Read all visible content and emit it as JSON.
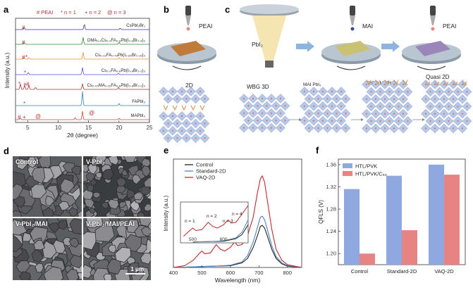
{
  "panels": {
    "a": {
      "label": "a",
      "legend": [
        "# PEAI",
        "* n = 1",
        "+ n = 2",
        "@ n = 3"
      ],
      "traces": [
        {
          "label": "CsPbI₂Br₁",
          "color": "#3a3a8c"
        },
        {
          "label": "DMA₀.₁Cs₀.₃FA₀.₆Pb(I₀.₆Br₀.₄)₃",
          "color": "#2f8a2f"
        },
        {
          "label": "Cs₀.₂₂FA₀.₇₈Pb(I₀.₈₅Br₀.₁₅)₃",
          "color": "#e6912a"
        },
        {
          "label": "Cs₀.₂FA₀.₈Pb(I₀.₈Br₀.₂)₃",
          "color": "#5a4fcf"
        },
        {
          "label": "Cs₀.₀₅MA₀.₁₅FA₀.₈Pb(I₀.₈Br₀.₂)₃",
          "color": "#b03030"
        },
        {
          "label": "FAPbI₃",
          "color": "#2b7fc8"
        },
        {
          "label": "MAPbI₃",
          "color": "#d04040"
        }
      ],
      "xlabel": "2θ (degree)",
      "ylabel": "Intensity (a.u.)",
      "xticks": [
        "5",
        "10",
        "15",
        "20",
        "25"
      ]
    },
    "b": {
      "label": "b",
      "reagent": "PEAI",
      "product": "2D"
    },
    "c": {
      "label": "c",
      "reagents": [
        "PbI₂",
        "MAI",
        "PEAI"
      ],
      "stages": [
        "WBG 3D",
        "MAI PbI₂",
        "PEAI MAPbI₃",
        "Quasi 2D"
      ]
    },
    "d": {
      "label": "d",
      "images": [
        "Control",
        "V-PbI₂",
        "V-PbI₂/MAI",
        "V-PbI₂/MAI/PEAI"
      ],
      "scale": "1 μm"
    },
    "e": {
      "label": "e"
    },
    "f": {
      "label": "f"
    }
  },
  "chart_data": [
    {
      "type": "line",
      "panel": "e",
      "xlabel": "Wavelength (nm)",
      "ylabel": "Intensity (a.u.)",
      "xlim": [
        400,
        850
      ],
      "xticks": [
        400,
        500,
        600,
        700,
        800
      ],
      "series": [
        {
          "name": "Control",
          "color": "#222222",
          "x": [
            400,
            450,
            500,
            550,
            600,
            640,
            660,
            680,
            695,
            705,
            712,
            720,
            730,
            745,
            760,
            780,
            800,
            850
          ],
          "y": [
            0,
            0.005,
            0.01,
            0.015,
            0.02,
            0.05,
            0.1,
            0.22,
            0.35,
            0.45,
            0.46,
            0.43,
            0.34,
            0.2,
            0.1,
            0.04,
            0.015,
            0
          ]
        },
        {
          "name": "Standard-2D",
          "color": "#4a86c8",
          "x": [
            400,
            450,
            500,
            550,
            600,
            640,
            660,
            680,
            695,
            705,
            712,
            720,
            730,
            745,
            760,
            780,
            800,
            850
          ],
          "y": [
            0,
            0.005,
            0.01,
            0.015,
            0.025,
            0.06,
            0.13,
            0.28,
            0.44,
            0.55,
            0.56,
            0.52,
            0.41,
            0.24,
            0.12,
            0.05,
            0.02,
            0
          ]
        },
        {
          "name": "VAQ-2D",
          "color": "#c0282d",
          "x": [
            400,
            440,
            470,
            490,
            500,
            510,
            530,
            550,
            565,
            580,
            600,
            615,
            625,
            640,
            660,
            680,
            695,
            705,
            712,
            720,
            730,
            745,
            760,
            780,
            800,
            850
          ],
          "y": [
            0,
            0.02,
            0.08,
            0.15,
            0.18,
            0.15,
            0.16,
            0.25,
            0.2,
            0.18,
            0.22,
            0.28,
            0.24,
            0.25,
            0.35,
            0.55,
            0.82,
            0.97,
            1.0,
            0.93,
            0.72,
            0.42,
            0.2,
            0.08,
            0.03,
            0
          ]
        }
      ],
      "inset": {
        "xticks": [
          500,
          600
        ],
        "annotations": [
          "n = 1",
          "n = 2",
          "n = 3",
          "n = 4"
        ]
      }
    },
    {
      "type": "bar",
      "panel": "f",
      "ylabel": "QFLS (V)",
      "ylim": [
        1.18,
        1.37
      ],
      "yticks": [
        1.2,
        1.24,
        1.28,
        1.32,
        1.36
      ],
      "categories": [
        "Control",
        "Standard-2D",
        "VAQ-2D"
      ],
      "series": [
        {
          "name": "HTL/PVK",
          "color": "#8fa9e0",
          "values": [
            1.316,
            1.34,
            1.36
          ]
        },
        {
          "name": "HTL/PVK/C₆₀",
          "color": "#e78383",
          "values": [
            1.2,
            1.242,
            1.342
          ]
        }
      ]
    }
  ]
}
